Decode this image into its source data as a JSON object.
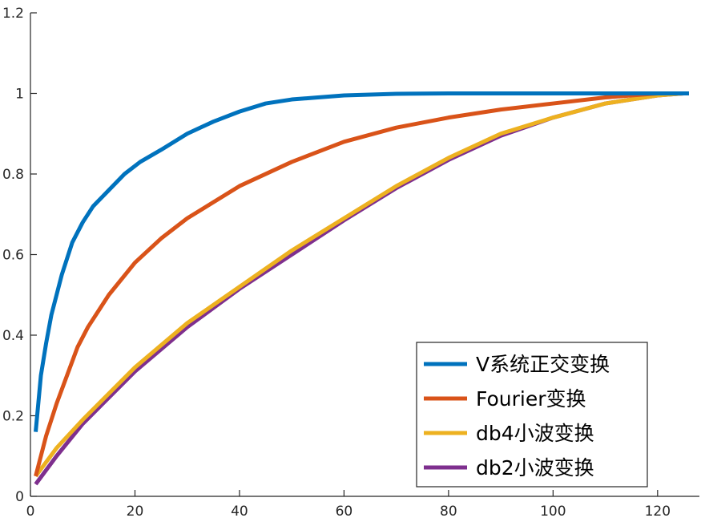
{
  "chart_data": {
    "type": "line",
    "title": "",
    "xlabel": "",
    "ylabel": "",
    "xlim": [
      0,
      128
    ],
    "ylim": [
      0,
      1.2
    ],
    "xticks": [
      0,
      20,
      40,
      60,
      80,
      100,
      120
    ],
    "yticks": [
      0,
      0.2,
      0.4,
      0.6,
      0.8,
      1,
      1.2
    ],
    "xtick_labels": [
      "0",
      "20",
      "40",
      "60",
      "80",
      "100",
      "120"
    ],
    "ytick_labels": [
      "0",
      "0.2",
      "0.4",
      "0.6",
      "0.8",
      "1",
      "1.2"
    ],
    "grid": false,
    "legend_position": "bottom-right",
    "series": [
      {
        "name": "V系统正交变换",
        "color": "#0072BD",
        "x": [
          1,
          2,
          3,
          4,
          5,
          6,
          8,
          10,
          12,
          15,
          18,
          21,
          25,
          30,
          35,
          40,
          45,
          50,
          55,
          60,
          65,
          70,
          80,
          90,
          100,
          110,
          120,
          126
        ],
        "y": [
          0.16,
          0.3,
          0.38,
          0.45,
          0.5,
          0.55,
          0.63,
          0.68,
          0.72,
          0.76,
          0.8,
          0.83,
          0.86,
          0.9,
          0.93,
          0.955,
          0.975,
          0.985,
          0.99,
          0.995,
          0.997,
          0.999,
          1.0,
          1.0,
          1.0,
          1.0,
          1.0,
          1.0
        ]
      },
      {
        "name": "Fourier变换",
        "color": "#D95319",
        "x": [
          1,
          3,
          5,
          7,
          9,
          11,
          15,
          20,
          25,
          30,
          40,
          50,
          60,
          70,
          80,
          90,
          100,
          110,
          120,
          126
        ],
        "y": [
          0.05,
          0.15,
          0.23,
          0.3,
          0.37,
          0.42,
          0.5,
          0.58,
          0.64,
          0.69,
          0.77,
          0.83,
          0.88,
          0.915,
          0.94,
          0.96,
          0.975,
          0.99,
          1.0,
          1.0
        ]
      },
      {
        "name": "db4小波变换",
        "color": "#EDB120",
        "x": [
          1,
          5,
          10,
          20,
          30,
          40,
          50,
          60,
          70,
          80,
          90,
          100,
          110,
          120,
          125
        ],
        "y": [
          0.05,
          0.12,
          0.19,
          0.32,
          0.43,
          0.52,
          0.61,
          0.69,
          0.77,
          0.84,
          0.9,
          0.94,
          0.975,
          0.995,
          1.0
        ]
      },
      {
        "name": "db2小波变换",
        "color": "#7E2F8E",
        "x": [
          1,
          5,
          10,
          20,
          30,
          40,
          50,
          60,
          70,
          80,
          90,
          100,
          110,
          120,
          125
        ],
        "y": [
          0.03,
          0.1,
          0.18,
          0.31,
          0.42,
          0.515,
          0.6,
          0.685,
          0.765,
          0.835,
          0.895,
          0.94,
          0.975,
          0.995,
          1.0
        ]
      }
    ]
  }
}
